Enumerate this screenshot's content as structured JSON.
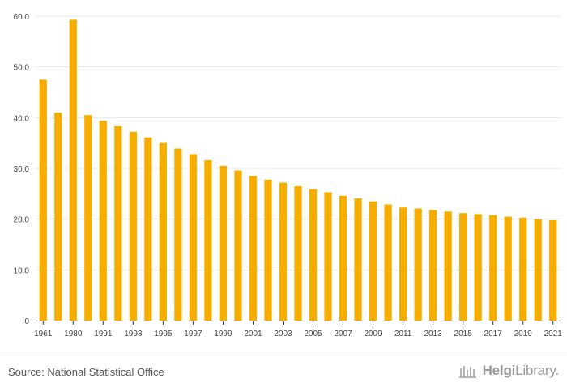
{
  "chart_data": {
    "type": "bar",
    "title": "",
    "xlabel": "",
    "ylabel": "",
    "categories": [
      "1961",
      "1970",
      "1980",
      "1990",
      "1991",
      "1992",
      "1993",
      "1994",
      "1995",
      "1996",
      "1997",
      "1998",
      "1999",
      "2000",
      "2001",
      "2002",
      "2003",
      "2004",
      "2005",
      "2006",
      "2007",
      "2008",
      "2009",
      "2010",
      "2011",
      "2012",
      "2013",
      "2014",
      "2015",
      "2016",
      "2017",
      "2018",
      "2019",
      "2020",
      "2021"
    ],
    "tick_labels": [
      "1961",
      "1980",
      "1991",
      "1993",
      "1995",
      "1997",
      "1999",
      "2001",
      "2003",
      "2005",
      "2007",
      "2009",
      "2011",
      "2013",
      "2015",
      "2017",
      "2019",
      "2021"
    ],
    "values": [
      47.5,
      41.0,
      59.3,
      40.5,
      39.4,
      38.3,
      37.2,
      36.1,
      35.0,
      33.9,
      32.8,
      31.6,
      30.5,
      29.6,
      28.5,
      27.8,
      27.2,
      26.5,
      25.9,
      25.3,
      24.6,
      24.1,
      23.5,
      22.9,
      22.3,
      22.1,
      21.8,
      21.5,
      21.2,
      21.0,
      20.8,
      20.5,
      20.3,
      20.0,
      19.8
    ],
    "ylim": [
      0,
      60
    ],
    "yticks": [
      0,
      10,
      20,
      30,
      40,
      50,
      60
    ],
    "ytick_labels": [
      "0",
      "10.0",
      "20.0",
      "30.0",
      "40.0",
      "50.0",
      "60.0"
    ],
    "grid": true,
    "bar_color": "#f5ae00"
  },
  "footer": {
    "source": "Source: National Statistical Office",
    "brand_prefix": "Helgi",
    "brand_suffix": "Library."
  },
  "colors": {
    "bar": "#f5ae00",
    "grid": "#e6e6e6",
    "axis": "#333333",
    "tick_text": "#444444"
  }
}
